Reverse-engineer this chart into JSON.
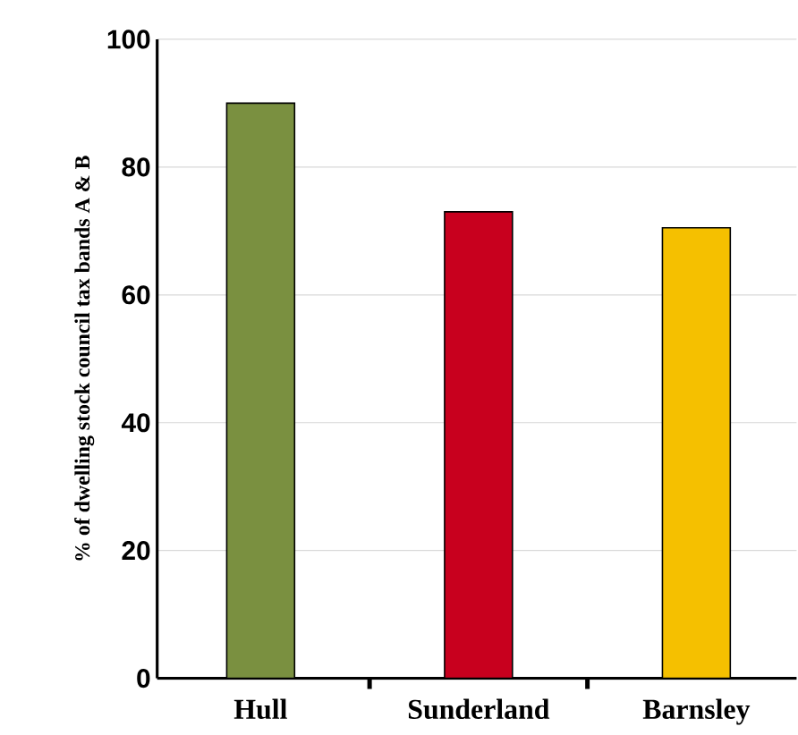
{
  "chart_data": {
    "type": "bar",
    "ylabel": "% of dwelling stock council tax bands A & B",
    "categories": [
      "Hull",
      "Sunderland",
      "Barnsley"
    ],
    "values": [
      90,
      73,
      70.5
    ],
    "colors": [
      "#7a9040",
      "#c8001e",
      "#f5c000"
    ],
    "ylim": [
      0,
      100
    ],
    "yticks": [
      0,
      20,
      40,
      60,
      80,
      100
    ],
    "grid": "y"
  }
}
